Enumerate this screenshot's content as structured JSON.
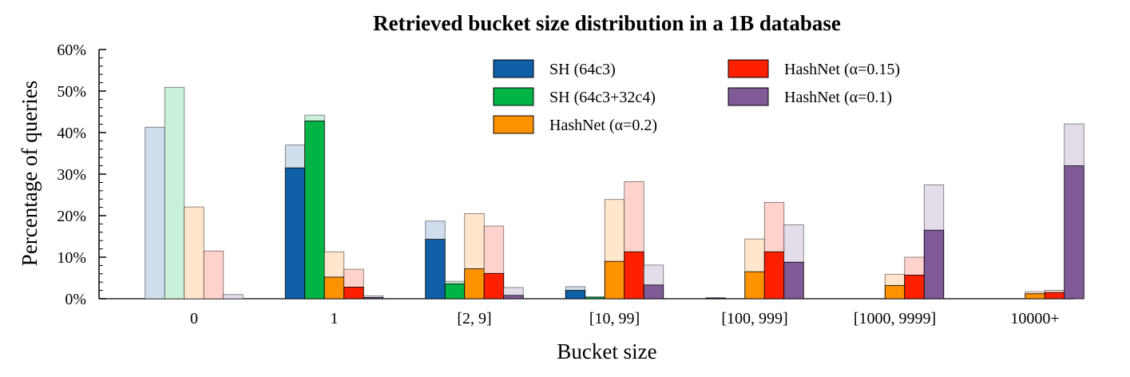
{
  "chart_data": {
    "type": "bar",
    "title": "Retrieved bucket size distribution in a 1B database",
    "xlabel": "Bucket size",
    "ylabel": "Percentage of queries",
    "ylim": [
      0,
      60
    ],
    "yticks": [
      0,
      10,
      20,
      30,
      40,
      50,
      60
    ],
    "ytick_labels": [
      "0%",
      "10%",
      "20%",
      "30%",
      "40%",
      "50%",
      "60%"
    ],
    "categories": [
      "0",
      "1",
      "[2, 9]",
      "[10, 99]",
      "[100, 999]",
      "[1000, 9999]",
      "10000+"
    ],
    "grid": false,
    "legend_position": "top-center",
    "series": [
      {
        "name": "SH (64c3)",
        "color": "#1060A8",
        "light_color": "#CFDDEC",
        "values": [
          0,
          31.5,
          14.3,
          2.0,
          0.2,
          0,
          0
        ],
        "light_values": [
          41.3,
          37.0,
          18.7,
          2.9,
          0.2,
          0,
          0
        ]
      },
      {
        "name": "SH (64c3+32c4)",
        "color": "#00B545",
        "light_color": "#CAF0DA",
        "values": [
          0,
          42.8,
          3.6,
          0.4,
          0,
          0,
          0
        ],
        "light_values": [
          50.9,
          44.2,
          4.2,
          0.4,
          0,
          0,
          0
        ]
      },
      {
        "name": "HashNet (α=0.2)",
        "color": "#FF9200",
        "light_color": "#FFE6CC",
        "values": [
          0,
          5.2,
          7.2,
          9.0,
          6.5,
          3.2,
          1.2
        ],
        "light_values": [
          22.1,
          11.3,
          20.5,
          23.9,
          14.4,
          5.9,
          1.7
        ]
      },
      {
        "name": "HashNet (α=0.15)",
        "color": "#FF2000",
        "light_color": "#FFD3CC",
        "values": [
          0,
          2.8,
          6.1,
          11.3,
          11.3,
          5.7,
          1.5
        ],
        "light_values": [
          11.5,
          7.1,
          17.5,
          28.2,
          23.2,
          10.0,
          2.0
        ]
      },
      {
        "name": "HashNet (α=0.1)",
        "color": "#7F5A97",
        "light_color": "#E3DDEA",
        "values": [
          0,
          0.3,
          0.8,
          3.3,
          8.8,
          16.5,
          32.0
        ],
        "light_values": [
          1.0,
          0.7,
          2.7,
          8.1,
          17.8,
          27.4,
          42.1
        ]
      }
    ]
  }
}
